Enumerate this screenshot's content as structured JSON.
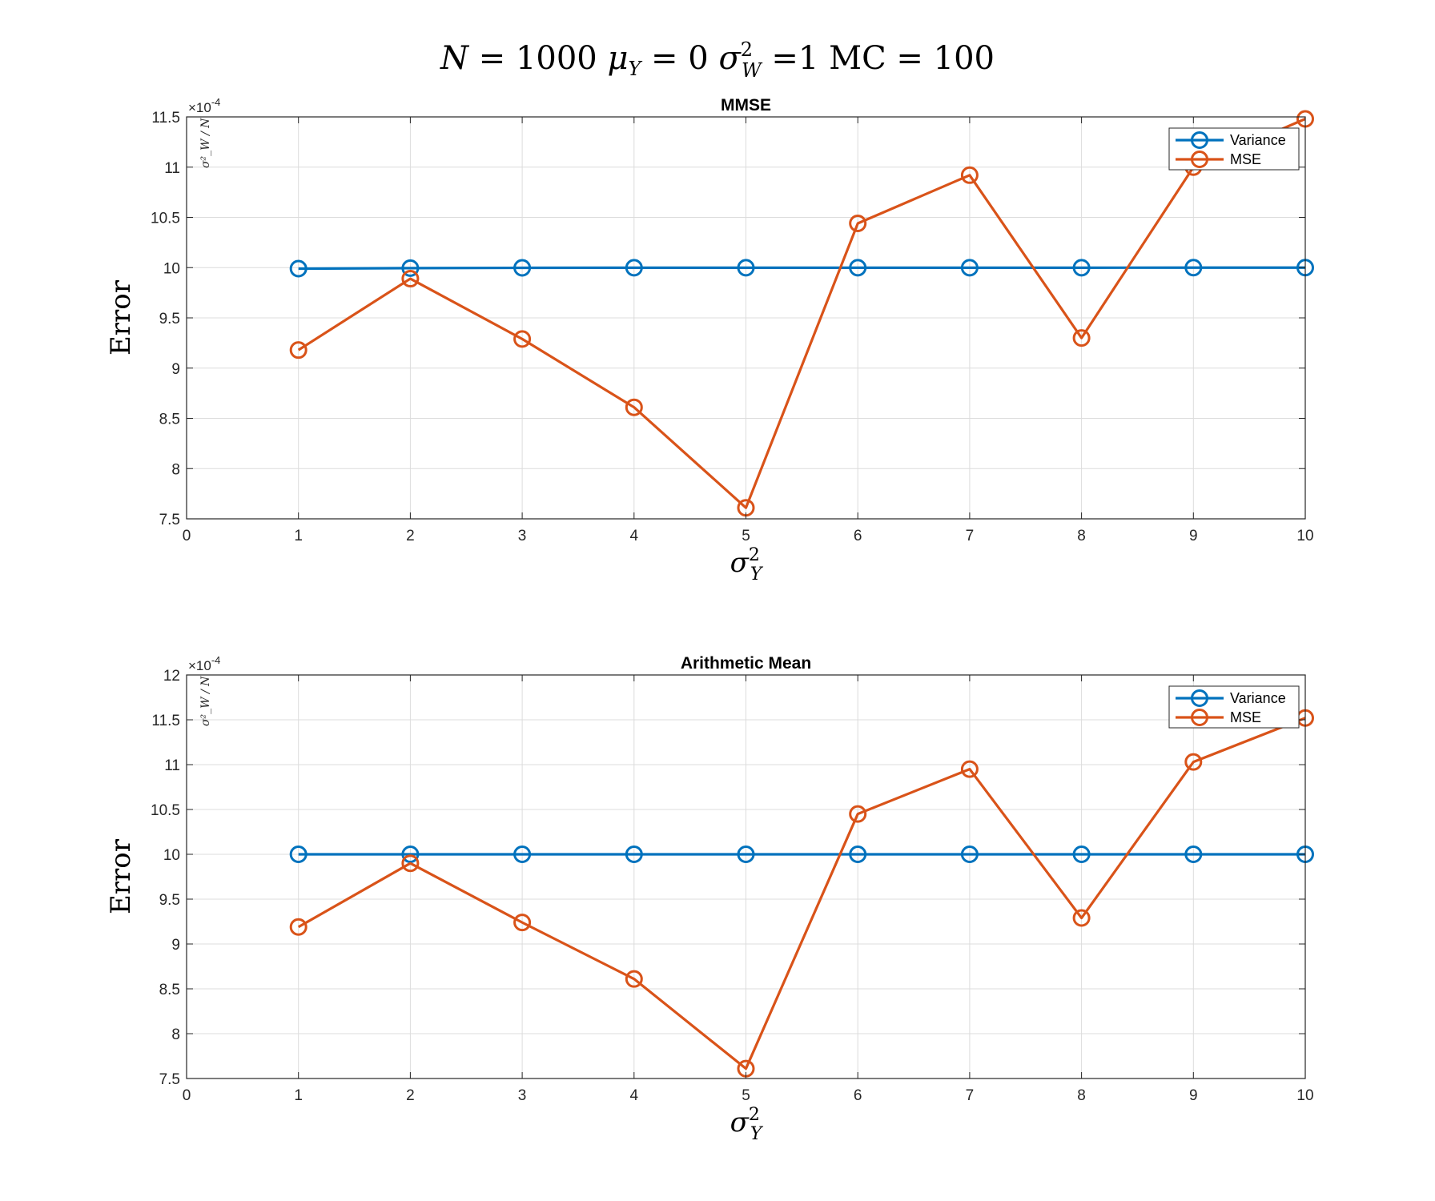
{
  "figure": {
    "title": "N = 1000 μ_Y = 0 σ²_W =1 MC = 100",
    "title_parts": {
      "n_label": "N",
      "n_eq": " = 1000 ",
      "mu": "μ",
      "mu_sub": "Y",
      "mu_eq": " = 0 ",
      "sigma": "σ",
      "sigma_sup": "2",
      "sigma_sub": "W",
      "sigma_eq": " =1 ",
      "mc": "MC",
      "mc_eq": " = 100"
    }
  },
  "colors": {
    "variance": "#0072BD",
    "mse": "#D95319",
    "grid": "#dcdcdc",
    "axis": "#262626"
  },
  "chart_data": [
    {
      "type": "line",
      "title": "MMSE",
      "xlabel": "σ²_Y",
      "ylabel": "Error",
      "exponent_label": "×10",
      "exponent_power": "-4",
      "reference_label": "σ²_W / N",
      "x": [
        1,
        2,
        3,
        4,
        5,
        6,
        7,
        8,
        9,
        10
      ],
      "xlim": [
        0,
        10
      ],
      "ylim": [
        7.5,
        11.5
      ],
      "xticks": [
        "0",
        "1",
        "2",
        "3",
        "4",
        "5",
        "6",
        "7",
        "8",
        "9",
        "10"
      ],
      "yticks": [
        "7.5",
        "8",
        "8.5",
        "9",
        "9.5",
        "10",
        "10.5",
        "11",
        "11.5"
      ],
      "grid": true,
      "legend_position": "top-right",
      "series": [
        {
          "name": "Variance",
          "values": [
            9.99,
            9.995,
            9.998,
            9.999,
            9.999,
            9.999,
            9.999,
            9.999,
            10.0,
            10.0
          ]
        },
        {
          "name": "MSE",
          "values": [
            9.18,
            9.89,
            9.29,
            8.61,
            7.61,
            10.44,
            10.92,
            9.3,
            11.0,
            11.48
          ]
        }
      ]
    },
    {
      "type": "line",
      "title": "Arithmetic Mean",
      "xlabel": "σ²_Y",
      "ylabel": "Error",
      "exponent_label": "×10",
      "exponent_power": "-4",
      "reference_label": "σ²_W / N",
      "x": [
        1,
        2,
        3,
        4,
        5,
        6,
        7,
        8,
        9,
        10
      ],
      "xlim": [
        0,
        10
      ],
      "ylim": [
        7.5,
        12
      ],
      "xticks": [
        "0",
        "1",
        "2",
        "3",
        "4",
        "5",
        "6",
        "7",
        "8",
        "9",
        "10"
      ],
      "yticks": [
        "7.5",
        "8",
        "8.5",
        "9",
        "9.5",
        "10",
        "10.5",
        "11",
        "11.5",
        "12"
      ],
      "grid": true,
      "legend_position": "top-right",
      "series": [
        {
          "name": "Variance",
          "values": [
            10,
            10,
            10,
            10,
            10,
            10,
            10,
            10,
            10,
            10
          ]
        },
        {
          "name": "MSE",
          "values": [
            9.19,
            9.9,
            9.24,
            8.61,
            7.61,
            10.45,
            10.95,
            9.29,
            11.03,
            11.52
          ]
        }
      ]
    }
  ]
}
